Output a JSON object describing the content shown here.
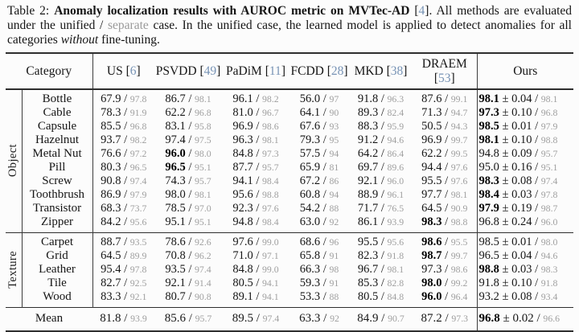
{
  "caption": {
    "prefix": "Table 2: ",
    "bold": "Anomaly localization results with AUROC metric on MVTec-AD",
    "space": " ",
    "cite_open": "[",
    "cite": "4",
    "cite_close": "]",
    "mid1": ". All methods are evaluated under the unified / ",
    "separate_word": "separate",
    "mid2": " case. In the unified case, the learned model is applied to detect anomalies for all categories ",
    "italic_word": "without",
    "suffix": " fine-tuning."
  },
  "header": {
    "category": "Category",
    "methods": [
      {
        "name": "US",
        "cite": "6"
      },
      {
        "name": "PSVDD",
        "cite": "49"
      },
      {
        "name": "PaDiM",
        "cite": "11"
      },
      {
        "name": "FCDD",
        "cite": "28"
      },
      {
        "name": "MKD",
        "cite": "38"
      },
      {
        "name": "DRAEM",
        "cite": "53"
      }
    ],
    "ours": "Ours"
  },
  "legend": {
    "unified_color": "#161616",
    "separate_color": "#9f9f9f",
    "citation_color": "#7793b5"
  },
  "sections": [
    {
      "label": "Object",
      "rows": [
        {
          "category": "Bottle",
          "cells": [
            {
              "u": "67.9",
              "s": "97.8",
              "best": false
            },
            {
              "u": "86.7",
              "s": "98.1",
              "best": false
            },
            {
              "u": "96.1",
              "s": "98.2",
              "best": false
            },
            {
              "u": "56.0",
              "s": "97",
              "best": false
            },
            {
              "u": "91.8",
              "s": "96.3",
              "best": false
            },
            {
              "u": "87.6",
              "s": "99.1",
              "best": false
            }
          ],
          "ours": {
            "m": "98.1",
            "std": "0.04",
            "s": "98.1",
            "best": true
          }
        },
        {
          "category": "Cable",
          "cells": [
            {
              "u": "78.3",
              "s": "91.9",
              "best": false
            },
            {
              "u": "62.2",
              "s": "96.8",
              "best": false
            },
            {
              "u": "81.0",
              "s": "96.7",
              "best": false
            },
            {
              "u": "64.1",
              "s": "90",
              "best": false
            },
            {
              "u": "89.3",
              "s": "82.4",
              "best": false
            },
            {
              "u": "71.3",
              "s": "94.7",
              "best": false
            }
          ],
          "ours": {
            "m": "97.3",
            "std": "0.10",
            "s": "96.8",
            "best": true
          }
        },
        {
          "category": "Capsule",
          "cells": [
            {
              "u": "85.5",
              "s": "96.8",
              "best": false
            },
            {
              "u": "83.1",
              "s": "95.8",
              "best": false
            },
            {
              "u": "96.9",
              "s": "98.6",
              "best": false
            },
            {
              "u": "67.6",
              "s": "93",
              "best": false
            },
            {
              "u": "88.3",
              "s": "95.9",
              "best": false
            },
            {
              "u": "50.5",
              "s": "94.3",
              "best": false
            }
          ],
          "ours": {
            "m": "98.5",
            "std": "0.01",
            "s": "97.9",
            "best": true
          }
        },
        {
          "category": "Hazelnut",
          "cells": [
            {
              "u": "93.7",
              "s": "98.2",
              "best": false
            },
            {
              "u": "97.4",
              "s": "97.5",
              "best": false
            },
            {
              "u": "96.3",
              "s": "98.1",
              "best": false
            },
            {
              "u": "79.3",
              "s": "95",
              "best": false
            },
            {
              "u": "91.2",
              "s": "94.6",
              "best": false
            },
            {
              "u": "96.9",
              "s": "99.7",
              "best": false
            }
          ],
          "ours": {
            "m": "98.1",
            "std": "0.10",
            "s": "98.8",
            "best": true
          }
        },
        {
          "category": "Metal Nut",
          "cells": [
            {
              "u": "76.6",
              "s": "97.2",
              "best": false
            },
            {
              "u": "96.0",
              "s": "98.0",
              "best": true
            },
            {
              "u": "84.8",
              "s": "97.3",
              "best": false
            },
            {
              "u": "57.5",
              "s": "94",
              "best": false
            },
            {
              "u": "64.2",
              "s": "86.4",
              "best": false
            },
            {
              "u": "62.2",
              "s": "99.5",
              "best": false
            }
          ],
          "ours": {
            "m": "94.8",
            "std": "0.09",
            "s": "95.7",
            "best": false
          }
        },
        {
          "category": "Pill",
          "cells": [
            {
              "u": "80.3",
              "s": "96.5",
              "best": false
            },
            {
              "u": "96.5",
              "s": "95.1",
              "best": true
            },
            {
              "u": "87.7",
              "s": "95.7",
              "best": false
            },
            {
              "u": "65.9",
              "s": "81",
              "best": false
            },
            {
              "u": "69.7",
              "s": "89.6",
              "best": false
            },
            {
              "u": "94.4",
              "s": "97.6",
              "best": false
            }
          ],
          "ours": {
            "m": "95.0",
            "std": "0.16",
            "s": "95.1",
            "best": false
          }
        },
        {
          "category": "Screw",
          "cells": [
            {
              "u": "90.8",
              "s": "97.4",
              "best": false
            },
            {
              "u": "74.3",
              "s": "95.7",
              "best": false
            },
            {
              "u": "94.1",
              "s": "98.4",
              "best": false
            },
            {
              "u": "67.2",
              "s": "86",
              "best": false
            },
            {
              "u": "92.1",
              "s": "96.0",
              "best": false
            },
            {
              "u": "95.5",
              "s": "97.6",
              "best": false
            }
          ],
          "ours": {
            "m": "98.3",
            "std": "0.08",
            "s": "97.4",
            "best": true
          }
        },
        {
          "category": "Toothbrush",
          "cells": [
            {
              "u": "86.9",
              "s": "97.9",
              "best": false
            },
            {
              "u": "98.0",
              "s": "98.1",
              "best": false
            },
            {
              "u": "95.6",
              "s": "98.8",
              "best": false
            },
            {
              "u": "60.8",
              "s": "94",
              "best": false
            },
            {
              "u": "88.9",
              "s": "96.1",
              "best": false
            },
            {
              "u": "97.7",
              "s": "98.1",
              "best": false
            }
          ],
          "ours": {
            "m": "98.4",
            "std": "0.03",
            "s": "97.8",
            "best": true
          }
        },
        {
          "category": "Transistor",
          "cells": [
            {
              "u": "68.3",
              "s": "73.7",
              "best": false
            },
            {
              "u": "78.5",
              "s": "97.0",
              "best": false
            },
            {
              "u": "92.3",
              "s": "97.6",
              "best": false
            },
            {
              "u": "54.2",
              "s": "88",
              "best": false
            },
            {
              "u": "71.7",
              "s": "76.5",
              "best": false
            },
            {
              "u": "64.5",
              "s": "90.9",
              "best": false
            }
          ],
          "ours": {
            "m": "97.9",
            "std": "0.19",
            "s": "98.7",
            "best": true
          }
        },
        {
          "category": "Zipper",
          "cells": [
            {
              "u": "84.2",
              "s": "95.6",
              "best": false
            },
            {
              "u": "95.1",
              "s": "95.1",
              "best": false
            },
            {
              "u": "94.8",
              "s": "98.4",
              "best": false
            },
            {
              "u": "63.0",
              "s": "92",
              "best": false
            },
            {
              "u": "86.1",
              "s": "93.9",
              "best": false
            },
            {
              "u": "98.3",
              "s": "98.8",
              "best": true
            }
          ],
          "ours": {
            "m": "96.8",
            "std": "0.24",
            "s": "96.0",
            "best": false
          }
        }
      ]
    },
    {
      "label": "Texture",
      "rows": [
        {
          "category": "Carpet",
          "cells": [
            {
              "u": "88.7",
              "s": "93.5",
              "best": false
            },
            {
              "u": "78.6",
              "s": "92.6",
              "best": false
            },
            {
              "u": "97.6",
              "s": "99.0",
              "best": false
            },
            {
              "u": "68.6",
              "s": "96",
              "best": false
            },
            {
              "u": "95.5",
              "s": "95.6",
              "best": false
            },
            {
              "u": "98.6",
              "s": "95.5",
              "best": true
            }
          ],
          "ours": {
            "m": "98.5",
            "std": "0.01",
            "s": "98.0",
            "best": false
          }
        },
        {
          "category": "Grid",
          "cells": [
            {
              "u": "64.5",
              "s": "89.9",
              "best": false
            },
            {
              "u": "70.8",
              "s": "96.2",
              "best": false
            },
            {
              "u": "71.0",
              "s": "97.1",
              "best": false
            },
            {
              "u": "65.8",
              "s": "91",
              "best": false
            },
            {
              "u": "82.3",
              "s": "91.8",
              "best": false
            },
            {
              "u": "98.7",
              "s": "99.7",
              "best": true
            }
          ],
          "ours": {
            "m": "96.5",
            "std": "0.04",
            "s": "94.6",
            "best": false
          }
        },
        {
          "category": "Leather",
          "cells": [
            {
              "u": "95.4",
              "s": "97.8",
              "best": false
            },
            {
              "u": "93.5",
              "s": "97.4",
              "best": false
            },
            {
              "u": "84.8",
              "s": "99.0",
              "best": false
            },
            {
              "u": "66.3",
              "s": "98",
              "best": false
            },
            {
              "u": "96.7",
              "s": "98.1",
              "best": false
            },
            {
              "u": "97.3",
              "s": "98.6",
              "best": false
            }
          ],
          "ours": {
            "m": "98.8",
            "std": "0.03",
            "s": "98.3",
            "best": true
          }
        },
        {
          "category": "Tile",
          "cells": [
            {
              "u": "82.7",
              "s": "92.5",
              "best": false
            },
            {
              "u": "92.1",
              "s": "91.4",
              "best": false
            },
            {
              "u": "80.5",
              "s": "94.1",
              "best": false
            },
            {
              "u": "59.3",
              "s": "91",
              "best": false
            },
            {
              "u": "85.3",
              "s": "82.8",
              "best": false
            },
            {
              "u": "98.0",
              "s": "99.2",
              "best": true
            }
          ],
          "ours": {
            "m": "91.8",
            "std": "0.10",
            "s": "91.8",
            "best": false
          }
        },
        {
          "category": "Wood",
          "cells": [
            {
              "u": "83.3",
              "s": "92.1",
              "best": false
            },
            {
              "u": "80.7",
              "s": "90.8",
              "best": false
            },
            {
              "u": "89.1",
              "s": "94.1",
              "best": false
            },
            {
              "u": "53.3",
              "s": "88",
              "best": false
            },
            {
              "u": "80.5",
              "s": "84.8",
              "best": false
            },
            {
              "u": "96.0",
              "s": "96.4",
              "best": true
            }
          ],
          "ours": {
            "m": "93.2",
            "std": "0.08",
            "s": "93.4",
            "best": false
          }
        }
      ]
    }
  ],
  "mean": {
    "label": "Mean",
    "cells": [
      {
        "u": "81.8",
        "s": "93.9",
        "best": false
      },
      {
        "u": "85.6",
        "s": "95.7",
        "best": false
      },
      {
        "u": "89.5",
        "s": "97.4",
        "best": false
      },
      {
        "u": "63.3",
        "s": "92",
        "best": false
      },
      {
        "u": "84.9",
        "s": "90.7",
        "best": false
      },
      {
        "u": "87.2",
        "s": "97.3",
        "best": false
      }
    ],
    "ours": {
      "m": "96.8",
      "std": "0.02",
      "s": "96.6",
      "best": true
    }
  }
}
